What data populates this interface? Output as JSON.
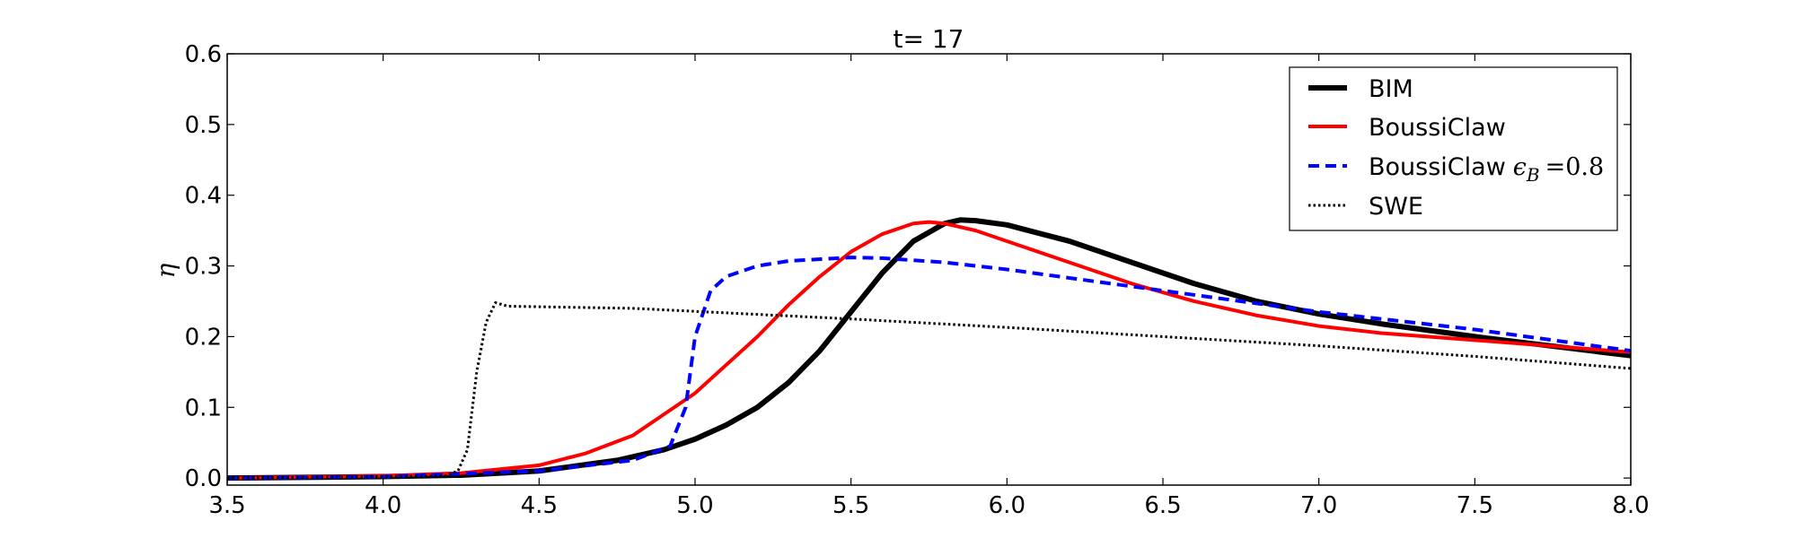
{
  "chart_data": {
    "type": "line",
    "title": "t= 17",
    "xlabel": "",
    "ylabel": "η",
    "xlim": [
      3.5,
      8.0
    ],
    "ylim": [
      -0.01,
      0.6
    ],
    "xticks": [
      "3.5",
      "4.0",
      "4.5",
      "5.0",
      "5.5",
      "6.0",
      "6.5",
      "7.0",
      "7.5",
      "8.0"
    ],
    "yticks": [
      "0.0",
      "0.1",
      "0.2",
      "0.3",
      "0.4",
      "0.5",
      "0.6"
    ],
    "grid": false,
    "legend": {
      "placement": "top-right",
      "entries": [
        {
          "label": "BIM"
        },
        {
          "label": "BoussiClaw"
        },
        {
          "label": "BoussiClaw",
          "math_symbol": "ϵ",
          "math_sub": "B",
          "math_tail": "=0.8"
        },
        {
          "label": "SWE"
        }
      ]
    },
    "series": [
      {
        "name": "BIM",
        "color": "#000000",
        "style": "solid",
        "x": [
          3.5,
          4.0,
          4.25,
          4.5,
          4.75,
          4.9,
          5.0,
          5.1,
          5.2,
          5.3,
          5.4,
          5.5,
          5.6,
          5.7,
          5.8,
          5.85,
          5.9,
          6.0,
          6.2,
          6.4,
          6.6,
          6.8,
          7.0,
          7.2,
          7.5,
          8.0
        ],
        "y": [
          0.0,
          0.002,
          0.004,
          0.01,
          0.025,
          0.04,
          0.055,
          0.075,
          0.1,
          0.135,
          0.18,
          0.235,
          0.29,
          0.335,
          0.36,
          0.365,
          0.364,
          0.358,
          0.335,
          0.305,
          0.275,
          0.25,
          0.232,
          0.218,
          0.2,
          0.173
        ]
      },
      {
        "name": "BoussiClaw",
        "color": "#ff0000",
        "style": "solid",
        "x": [
          3.5,
          4.0,
          4.25,
          4.5,
          4.65,
          4.8,
          4.9,
          5.0,
          5.1,
          5.2,
          5.3,
          5.4,
          5.5,
          5.6,
          5.7,
          5.75,
          5.8,
          5.9,
          6.0,
          6.2,
          6.4,
          6.6,
          6.8,
          7.0,
          7.2,
          7.5,
          8.0
        ],
        "y": [
          0.0,
          0.003,
          0.007,
          0.018,
          0.035,
          0.06,
          0.09,
          0.12,
          0.16,
          0.2,
          0.245,
          0.285,
          0.32,
          0.345,
          0.36,
          0.362,
          0.36,
          0.35,
          0.335,
          0.305,
          0.275,
          0.25,
          0.23,
          0.215,
          0.205,
          0.195,
          0.178
        ]
      },
      {
        "name": "BoussiClaw ϵ_B =0.8",
        "color": "#0000ff",
        "style": "dashed",
        "x": [
          3.5,
          4.0,
          4.5,
          4.8,
          4.92,
          4.97,
          5.0,
          5.05,
          5.1,
          5.2,
          5.3,
          5.5,
          5.6,
          5.8,
          6.0,
          6.5,
          7.0,
          7.5,
          8.0
        ],
        "y": [
          0.0,
          0.002,
          0.01,
          0.025,
          0.045,
          0.1,
          0.2,
          0.265,
          0.285,
          0.3,
          0.307,
          0.312,
          0.311,
          0.305,
          0.295,
          0.265,
          0.235,
          0.21,
          0.18
        ]
      },
      {
        "name": "SWE",
        "color": "#000000",
        "style": "dotted",
        "x": [
          3.5,
          4.2,
          4.24,
          4.27,
          4.3,
          4.33,
          4.36,
          4.4,
          4.8,
          5.5,
          6.0,
          6.5,
          7.0,
          7.5,
          8.0
        ],
        "y": [
          0.0,
          0.003,
          0.01,
          0.04,
          0.15,
          0.22,
          0.248,
          0.243,
          0.24,
          0.225,
          0.213,
          0.2,
          0.187,
          0.172,
          0.155
        ]
      }
    ]
  }
}
